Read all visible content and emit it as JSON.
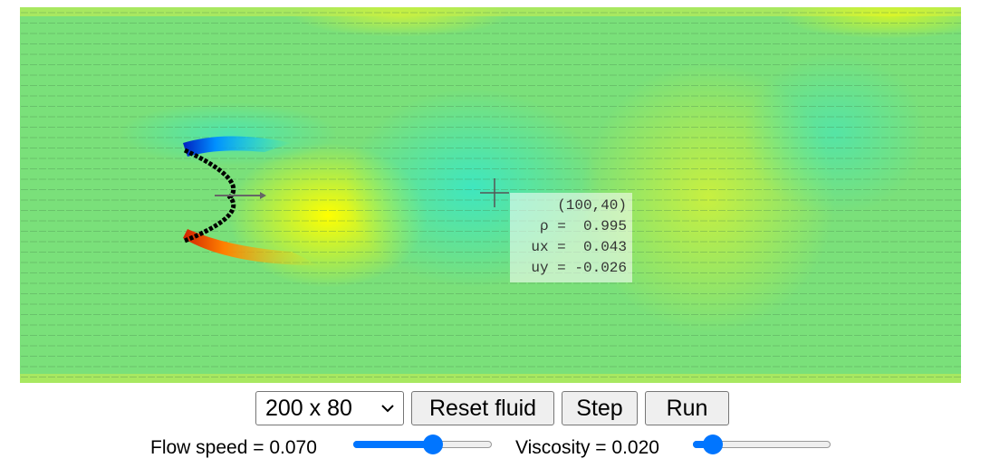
{
  "probe": {
    "position": "(100,40)",
    "rho": "ρ =  0.995",
    "ux": "ux =  0.043",
    "uy": "uy = -0.026"
  },
  "controls": {
    "grid_size": "200 x 80",
    "buttons": [
      "Reset fluid",
      "Step",
      "Run"
    ],
    "flow_speed": "Flow speed = 0.070",
    "viscosity": "Viscosity = 0.020"
  }
}
